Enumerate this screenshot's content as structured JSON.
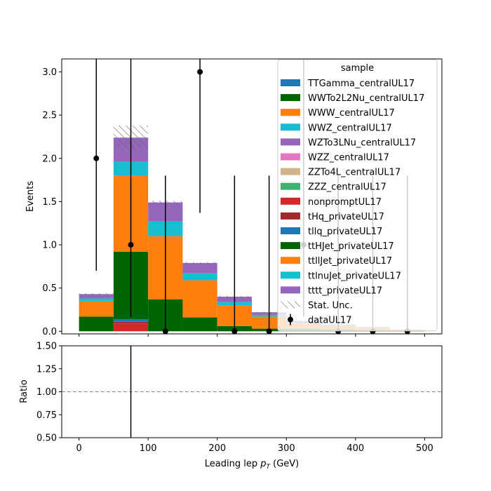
{
  "chart_data": [
    {
      "panel": "main",
      "type": "bar",
      "stacked": true,
      "ylabel": "Events",
      "ylim": [
        -0.03,
        3.15
      ],
      "yticks": [
        "0.0",
        "0.5",
        "1.0",
        "1.5",
        "2.0",
        "2.5",
        "3.0"
      ],
      "bin_edges": [
        0,
        50,
        100,
        150,
        200,
        250,
        300,
        350,
        400,
        450,
        500
      ],
      "series": [
        {
          "name": "TTGamma_centralUL17",
          "color": "#1f77b4",
          "values": [
            0,
            0,
            0,
            0,
            0,
            0,
            0,
            0,
            0,
            0
          ]
        },
        {
          "name": "WWTo2L2Nu_centralUL17",
          "color": "#006400",
          "values": [
            0,
            0,
            0,
            0,
            0,
            0,
            0,
            0,
            0,
            0
          ]
        },
        {
          "name": "WWW_centralUL17",
          "color": "#ff7f0e",
          "values": [
            0,
            0,
            0,
            0,
            0,
            0,
            0,
            0,
            0,
            0
          ]
        },
        {
          "name": "WWZ_centralUL17",
          "color": "#17becf",
          "values": [
            0,
            0,
            0,
            0,
            0,
            0,
            0,
            0,
            0,
            0
          ]
        },
        {
          "name": "WZTo3LNu_centralUL17",
          "color": "#9467bd",
          "values": [
            0,
            0,
            0,
            0,
            0,
            0,
            0,
            0,
            0,
            0
          ]
        },
        {
          "name": "WZZ_centralUL17",
          "color": "#e377c2",
          "values": [
            0,
            0,
            0,
            0,
            0,
            0,
            0,
            0,
            0,
            0
          ]
        },
        {
          "name": "ZZTo4L_centralUL17",
          "color": "#d2b48c",
          "values": [
            0,
            0,
            0,
            0,
            0,
            0,
            0,
            0,
            0,
            0
          ]
        },
        {
          "name": "ZZZ_centralUL17",
          "color": "#3cb371",
          "values": [
            0,
            0,
            0,
            0,
            0,
            0,
            0,
            0,
            0,
            0
          ]
        },
        {
          "name": "nonpromptUL17",
          "color": "#d62728",
          "values": [
            0,
            0.09,
            0,
            0,
            0,
            0,
            0,
            0,
            0,
            0
          ]
        },
        {
          "name": "tHq_privateUL17",
          "color": "#a52a2a",
          "values": [
            0,
            0.02,
            0,
            0,
            0,
            0,
            0,
            0,
            0,
            0
          ]
        },
        {
          "name": "tllq_privateUL17",
          "color": "#1f77b4",
          "values": [
            0,
            0.03,
            0,
            0,
            0,
            0,
            0,
            0,
            0,
            0
          ]
        },
        {
          "name": "ttHJet_privateUL17",
          "color": "#006400",
          "values": [
            0.17,
            0.78,
            0.37,
            0.16,
            0.06,
            0.03,
            0.03,
            0.02,
            0.01,
            0.01
          ]
        },
        {
          "name": "ttllJet_privateUL17",
          "color": "#ff7f0e",
          "values": [
            0.18,
            0.88,
            0.73,
            0.43,
            0.24,
            0.14,
            0.06,
            0.04,
            0.03,
            0.01
          ]
        },
        {
          "name": "ttlnuJet_privateUL17",
          "color": "#17becf",
          "values": [
            0.03,
            0.16,
            0.17,
            0.08,
            0.04,
            0.02,
            0.01,
            0.005,
            0.005,
            0.0
          ]
        },
        {
          "name": "tttt_privateUL17",
          "color": "#9467bd",
          "values": [
            0.05,
            0.28,
            0.22,
            0.12,
            0.06,
            0.03,
            0.02,
            0.01,
            0.005,
            0.0
          ]
        }
      ],
      "stat_unc_total": [
        0.43,
        2.24,
        1.49,
        0.79,
        0.4,
        0.22,
        0.12,
        0.075,
        0.05,
        0.02
      ],
      "stat_unc_halfwidth": [
        0.01,
        0.14,
        0.02,
        0.01,
        0.01,
        0.005,
        0.005,
        0.005,
        0.005,
        0.005
      ],
      "data": {
        "name": "dataUL17",
        "x": [
          25,
          75,
          125,
          175,
          225,
          275,
          325,
          375,
          425,
          475
        ],
        "y": [
          2,
          1,
          0,
          3,
          0,
          0,
          1,
          0,
          0,
          0
        ],
        "yerr_low": [
          1.3,
          0.83,
          0,
          1.63,
          0,
          0,
          0.83,
          0,
          0,
          0
        ],
        "yerr_high": [
          2.6,
          2.3,
          1.8,
          2.9,
          1.8,
          1.8,
          2.3,
          1.8,
          1.8,
          1.8
        ]
      },
      "legend": {
        "title": "sample",
        "placement": "upper right",
        "stat_label": "Stat. Unc."
      }
    },
    {
      "panel": "ratio",
      "type": "line",
      "ylabel": "Ratio",
      "ylim": [
        0.5,
        1.5
      ],
      "yticks": [
        "0.50",
        "0.75",
        "1.00",
        "1.25",
        "1.50"
      ],
      "reference_line": 1.0,
      "xlabel_main": "Leading lep",
      "xlabel_symbol": "p",
      "xlabel_sub": "T",
      "xlabel_unit": "(GeV)",
      "xlim": [
        -25,
        525
      ],
      "xticks": [
        0,
        100,
        200,
        300,
        400,
        500
      ],
      "xtick_labels": [
        "0",
        "100",
        "200",
        "300",
        "400",
        "500"
      ],
      "error_bars": [
        {
          "x": 75,
          "low": 0.0,
          "high": 2.0
        }
      ]
    }
  ]
}
